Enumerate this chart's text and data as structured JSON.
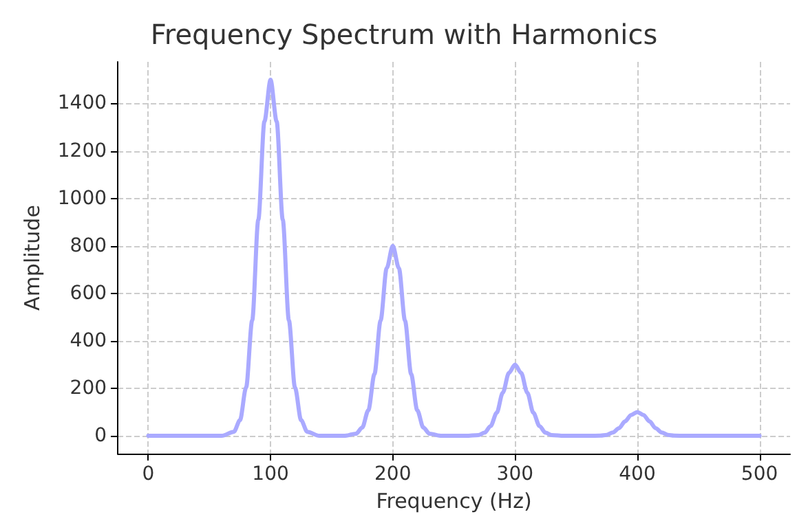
{
  "chart_data": {
    "type": "line",
    "title": "Frequency Spectrum with Harmonics",
    "xlabel": "Frequency (Hz)",
    "ylabel": "Amplitude",
    "x": [
      0,
      60,
      70,
      75,
      80,
      85,
      90,
      95,
      100,
      105,
      110,
      115,
      120,
      125,
      130,
      140,
      150,
      160,
      170,
      175,
      180,
      185,
      190,
      195,
      200,
      205,
      210,
      215,
      220,
      225,
      230,
      240,
      250,
      260,
      270,
      275,
      280,
      285,
      290,
      295,
      300,
      305,
      310,
      315,
      320,
      325,
      330,
      340,
      350,
      360,
      370,
      375,
      380,
      385,
      390,
      395,
      400,
      405,
      410,
      415,
      420,
      425,
      430,
      440,
      500
    ],
    "series": [
      {
        "color": "#aaaaff",
        "values": [
          0,
          0,
          17,
          66,
          203,
          487,
          910,
          1324,
          1500,
          1324,
          910,
          487,
          203,
          66,
          17,
          0,
          0,
          0,
          9,
          35,
          108,
          260,
          485,
          706,
          800,
          706,
          485,
          260,
          108,
          35,
          9,
          0,
          0,
          0,
          3,
          13,
          41,
          97,
          182,
          265,
          300,
          265,
          182,
          97,
          41,
          13,
          3,
          0,
          0,
          0,
          1,
          4,
          14,
          32,
          61,
          88,
          100,
          88,
          61,
          32,
          14,
          4,
          1,
          0,
          0
        ]
      }
    ],
    "xlim": [
      -25,
      525
    ],
    "xticks": [
      0,
      100,
      200,
      300,
      400,
      500
    ],
    "ylim": [
      -75,
      1575
    ],
    "yticks": [
      0,
      200,
      400,
      600,
      800,
      1000,
      1200,
      1400
    ],
    "grid": true,
    "marker": "none",
    "line_style": "solid"
  }
}
